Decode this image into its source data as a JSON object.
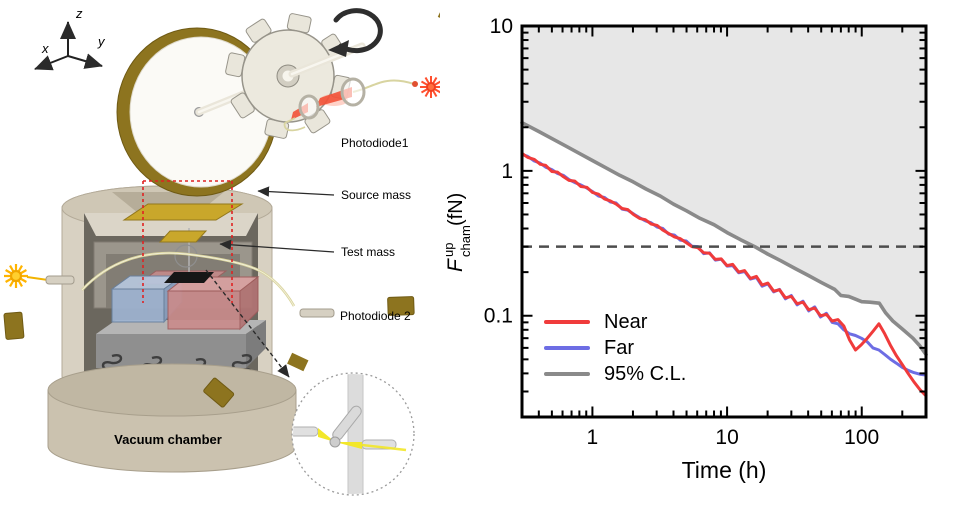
{
  "figure": {
    "diagram": {
      "axes_triad": {
        "x": "x",
        "y": "y",
        "z": "z"
      },
      "labels": {
        "photodiode1": "Photodiode1",
        "source_mass": "Source mass",
        "test_mass": "Test mass",
        "photodiode2": "Photodiode 2",
        "vacuum_chamber": "Vacuum chamber"
      },
      "colors": {
        "disk_rim": "#8d741f",
        "gold_plate": "#c9a72b",
        "chamber_beige": "#d8d1c2",
        "laser_red": "#ff4f2e",
        "laser_yellow": "#ffb400"
      }
    },
    "chart_data": {
      "type": "line",
      "xlabel": "Time (h)",
      "ylabel_parts": {
        "symbol": "F",
        "sup": "up",
        "sub": "cham",
        "unit": " (fN)"
      },
      "xscale": "log",
      "yscale": "log",
      "xlim": [
        0.3,
        300
      ],
      "ylim": [
        0.02,
        10
      ],
      "grid": false,
      "legend_position": "lower-left",
      "x_ticks": [
        {
          "value": 1,
          "label": "1"
        },
        {
          "value": 10,
          "label": "10"
        },
        {
          "value": 100,
          "label": "100"
        }
      ],
      "y_ticks": [
        {
          "value": 10,
          "label": "10"
        },
        {
          "value": 1,
          "label": "1"
        },
        {
          "value": 0.1,
          "label": "0.1"
        }
      ],
      "threshold_line": {
        "value": 0.3,
        "style": "dashed",
        "color": "#4d4d4d"
      },
      "shade_above_color": "#e7e7e7",
      "x": [
        0.3,
        0.33,
        0.37,
        0.41,
        0.45,
        0.5,
        0.55,
        0.61,
        0.67,
        0.74,
        0.82,
        0.91,
        1.0,
        1.11,
        1.23,
        1.36,
        1.5,
        1.66,
        1.83,
        2.02,
        2.24,
        2.47,
        2.73,
        3.02,
        3.33,
        3.68,
        4.07,
        4.5,
        4.97,
        5.49,
        6.07,
        6.7,
        7.4,
        8.18,
        9.04,
        9.99,
        11.0,
        12.2,
        13.5,
        14.9,
        16.5,
        18.2,
        20.1,
        22.2,
        24.5,
        27.1,
        30,
        33.1,
        36.6,
        40.4,
        44.7,
        49.4,
        54.6,
        60.3,
        66.6,
        73.6,
        81.3,
        89.9,
        99.3,
        110,
        121,
        134,
        148,
        164,
        181,
        200,
        221,
        244,
        270,
        300
      ],
      "series": [
        {
          "name": "Near",
          "color": "#f03b3b",
          "y": [
            1.32,
            1.24,
            1.2,
            1.11,
            1.09,
            0.99,
            0.98,
            0.91,
            0.86,
            0.85,
            0.78,
            0.77,
            0.71,
            0.69,
            0.64,
            0.62,
            0.59,
            0.55,
            0.54,
            0.5,
            0.47,
            0.46,
            0.43,
            0.42,
            0.39,
            0.37,
            0.35,
            0.34,
            0.32,
            0.3,
            0.295,
            0.272,
            0.27,
            0.245,
            0.247,
            0.222,
            0.226,
            0.2,
            0.205,
            0.181,
            0.187,
            0.163,
            0.168,
            0.148,
            0.151,
            0.133,
            0.136,
            0.121,
            0.124,
            0.11,
            0.113,
            0.1,
            0.102,
            0.092,
            0.094,
            0.085,
            0.068,
            0.058,
            0.063,
            0.07,
            0.078,
            0.088,
            0.075,
            0.062,
            0.053,
            0.046,
            0.04,
            0.035,
            0.031,
            0.028
          ]
        },
        {
          "name": "Far",
          "color": "#6d6de4",
          "y": [
            1.3,
            1.26,
            1.17,
            1.13,
            1.06,
            1.02,
            0.96,
            0.93,
            0.87,
            0.83,
            0.8,
            0.76,
            0.72,
            0.67,
            0.655,
            0.61,
            0.6,
            0.545,
            0.535,
            0.505,
            0.475,
            0.452,
            0.438,
            0.41,
            0.4,
            0.366,
            0.36,
            0.332,
            0.328,
            0.302,
            0.3,
            0.268,
            0.272,
            0.242,
            0.246,
            0.22,
            0.222,
            0.198,
            0.202,
            0.179,
            0.184,
            0.16,
            0.166,
            0.146,
            0.152,
            0.131,
            0.138,
            0.119,
            0.126,
            0.108,
            0.115,
            0.098,
            0.104,
            0.09,
            0.088,
            0.08,
            0.075,
            0.073,
            0.07,
            0.066,
            0.06,
            0.058,
            0.054,
            0.05,
            0.047,
            0.044,
            0.042,
            0.0405,
            0.0395,
            0.039
          ]
        },
        {
          "name": "95% C.L.",
          "color": "#8a8a8a",
          "fill_above": true,
          "x": [
            0.3,
            0.4,
            0.5,
            0.63,
            0.8,
            1.0,
            1.26,
            1.6,
            2.0,
            2.5,
            3.2,
            4.0,
            5.0,
            6.3,
            8.0,
            10,
            12.6,
            16,
            20,
            25,
            32,
            40,
            50,
            63,
            70,
            80,
            90,
            100,
            115,
            135,
            150,
            170,
            200,
            240,
            270,
            300
          ],
          "y": [
            2.15,
            1.87,
            1.67,
            1.49,
            1.32,
            1.18,
            1.05,
            0.93,
            0.84,
            0.75,
            0.67,
            0.59,
            0.53,
            0.47,
            0.425,
            0.375,
            0.335,
            0.3,
            0.267,
            0.24,
            0.212,
            0.19,
            0.17,
            0.152,
            0.138,
            0.136,
            0.13,
            0.125,
            0.124,
            0.122,
            0.105,
            0.092,
            0.081,
            0.07,
            0.062,
            0.054
          ]
        }
      ]
    }
  }
}
